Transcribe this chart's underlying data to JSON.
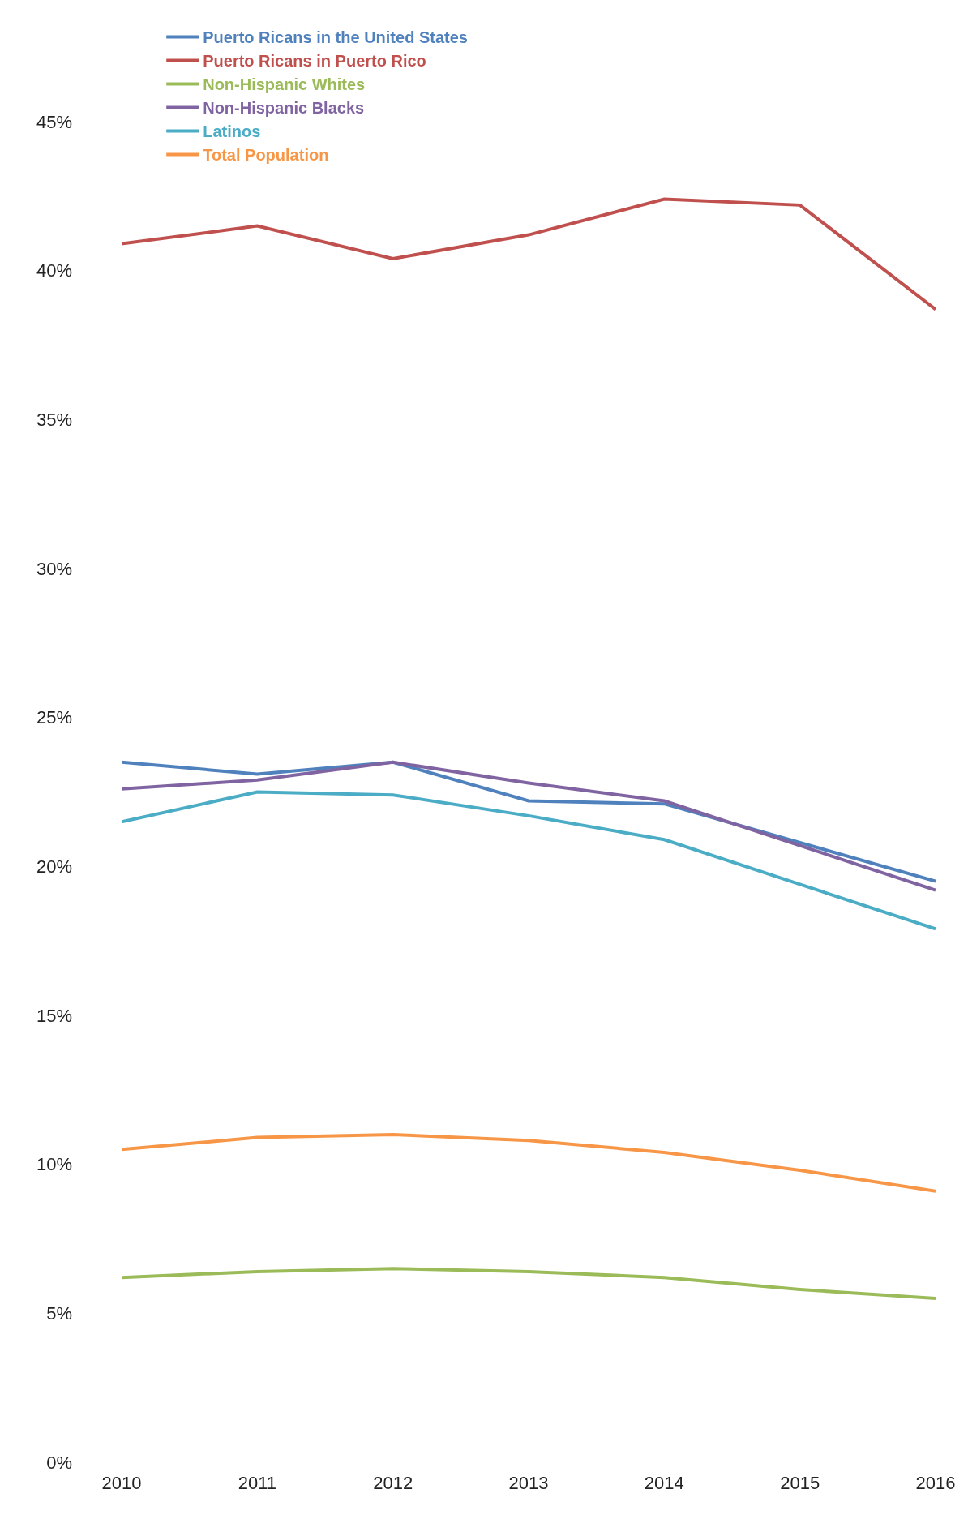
{
  "chart_data": {
    "type": "line",
    "x": [
      2010,
      2011,
      2012,
      2013,
      2014,
      2015,
      2016
    ],
    "series": [
      {
        "name": "Puerto Ricans in the United States",
        "color": "#4f81bd",
        "values": [
          23.5,
          23.1,
          23.5,
          22.2,
          22.1,
          20.8,
          19.5
        ]
      },
      {
        "name": "Puerto Ricans in Puerto Rico",
        "color": "#c0504d",
        "values": [
          40.9,
          41.5,
          40.4,
          41.2,
          42.4,
          42.2,
          38.7
        ]
      },
      {
        "name": "Non-Hispanic Whites",
        "color": "#9bbb59",
        "values": [
          6.2,
          6.4,
          6.5,
          6.4,
          6.2,
          5.8,
          5.5
        ]
      },
      {
        "name": "Non-Hispanic Blacks",
        "color": "#8064a2",
        "values": [
          22.6,
          22.9,
          23.5,
          22.8,
          22.2,
          20.7,
          19.2
        ]
      },
      {
        "name": "Latinos",
        "color": "#4bacc6",
        "values": [
          21.5,
          22.5,
          22.4,
          21.7,
          20.9,
          19.4,
          17.9
        ]
      },
      {
        "name": "Total Population",
        "color": "#f79646",
        "values": [
          10.5,
          10.9,
          11.0,
          10.8,
          10.4,
          9.8,
          9.1
        ]
      }
    ],
    "xlim": [
      2010,
      2016
    ],
    "xticks": [
      2010,
      2011,
      2012,
      2013,
      2014,
      2015,
      2016
    ],
    "ylim": [
      0,
      45
    ],
    "yticks": [
      {
        "value": 0,
        "label": "0%"
      },
      {
        "value": 5,
        "label": "5%"
      },
      {
        "value": 10,
        "label": "10%"
      },
      {
        "value": 15,
        "label": "15%"
      },
      {
        "value": 20,
        "label": "20%"
      },
      {
        "value": 25,
        "label": "25%"
      },
      {
        "value": 30,
        "label": "30%"
      },
      {
        "value": 35,
        "label": "35%"
      },
      {
        "value": 40,
        "label": "40%"
      },
      {
        "value": 45,
        "label": "45%"
      }
    ],
    "grid": false,
    "legend": "top",
    "marker": "none",
    "line_style": "solid"
  }
}
